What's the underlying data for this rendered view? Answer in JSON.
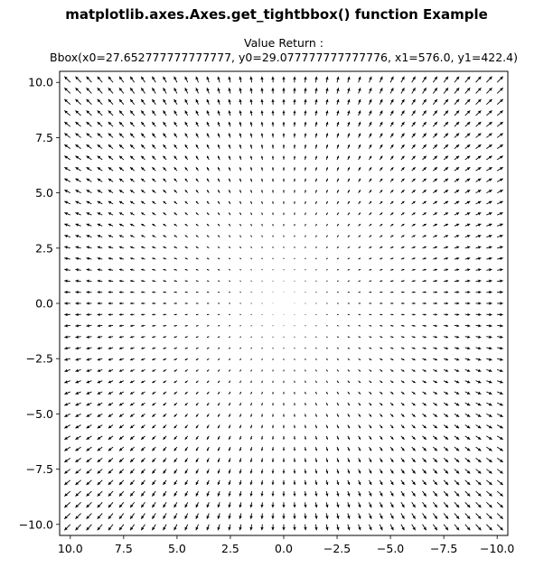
{
  "figure": {
    "suptitle": "matplotlib.axes.Axes.get_tightbbox() function Example"
  },
  "chart_data": {
    "type": "quiver",
    "title": "Value Return :",
    "subtitle": "Bbox(x0=27.652777777777777, y0=29.077777777777776, x1=576.0, y1=422.4)",
    "xlabel": "",
    "ylabel": "",
    "xlim": [
      10.5,
      -10.5
    ],
    "ylim": [
      -10.5,
      10.5
    ],
    "x_inverted": true,
    "grid": false,
    "x_ticks": [
      10.0,
      7.5,
      5.0,
      2.5,
      0.0,
      -2.5,
      -5.0,
      -7.5,
      -10.0
    ],
    "x_tick_labels": [
      "10.0",
      "7.5",
      "5.0",
      "2.5",
      "0.0",
      "−2.5",
      "−5.0",
      "−7.5",
      "−10.0"
    ],
    "y_ticks": [
      10.0,
      7.5,
      5.0,
      2.5,
      0.0,
      -2.5,
      -5.0,
      -7.5,
      -10.0
    ],
    "y_tick_labels": [
      "10.0",
      "7.5",
      "5.0",
      "2.5",
      "0.0",
      "−2.5",
      "−5.0",
      "−7.5",
      "−10.0"
    ],
    "grid_x": {
      "start": -10,
      "stop": 10,
      "step": 0.5
    },
    "grid_y": {
      "start": -10,
      "stop": 10,
      "step": 0.5
    },
    "vector_field": {
      "u": "x",
      "v": "y"
    },
    "arrow_color": "#000000"
  }
}
